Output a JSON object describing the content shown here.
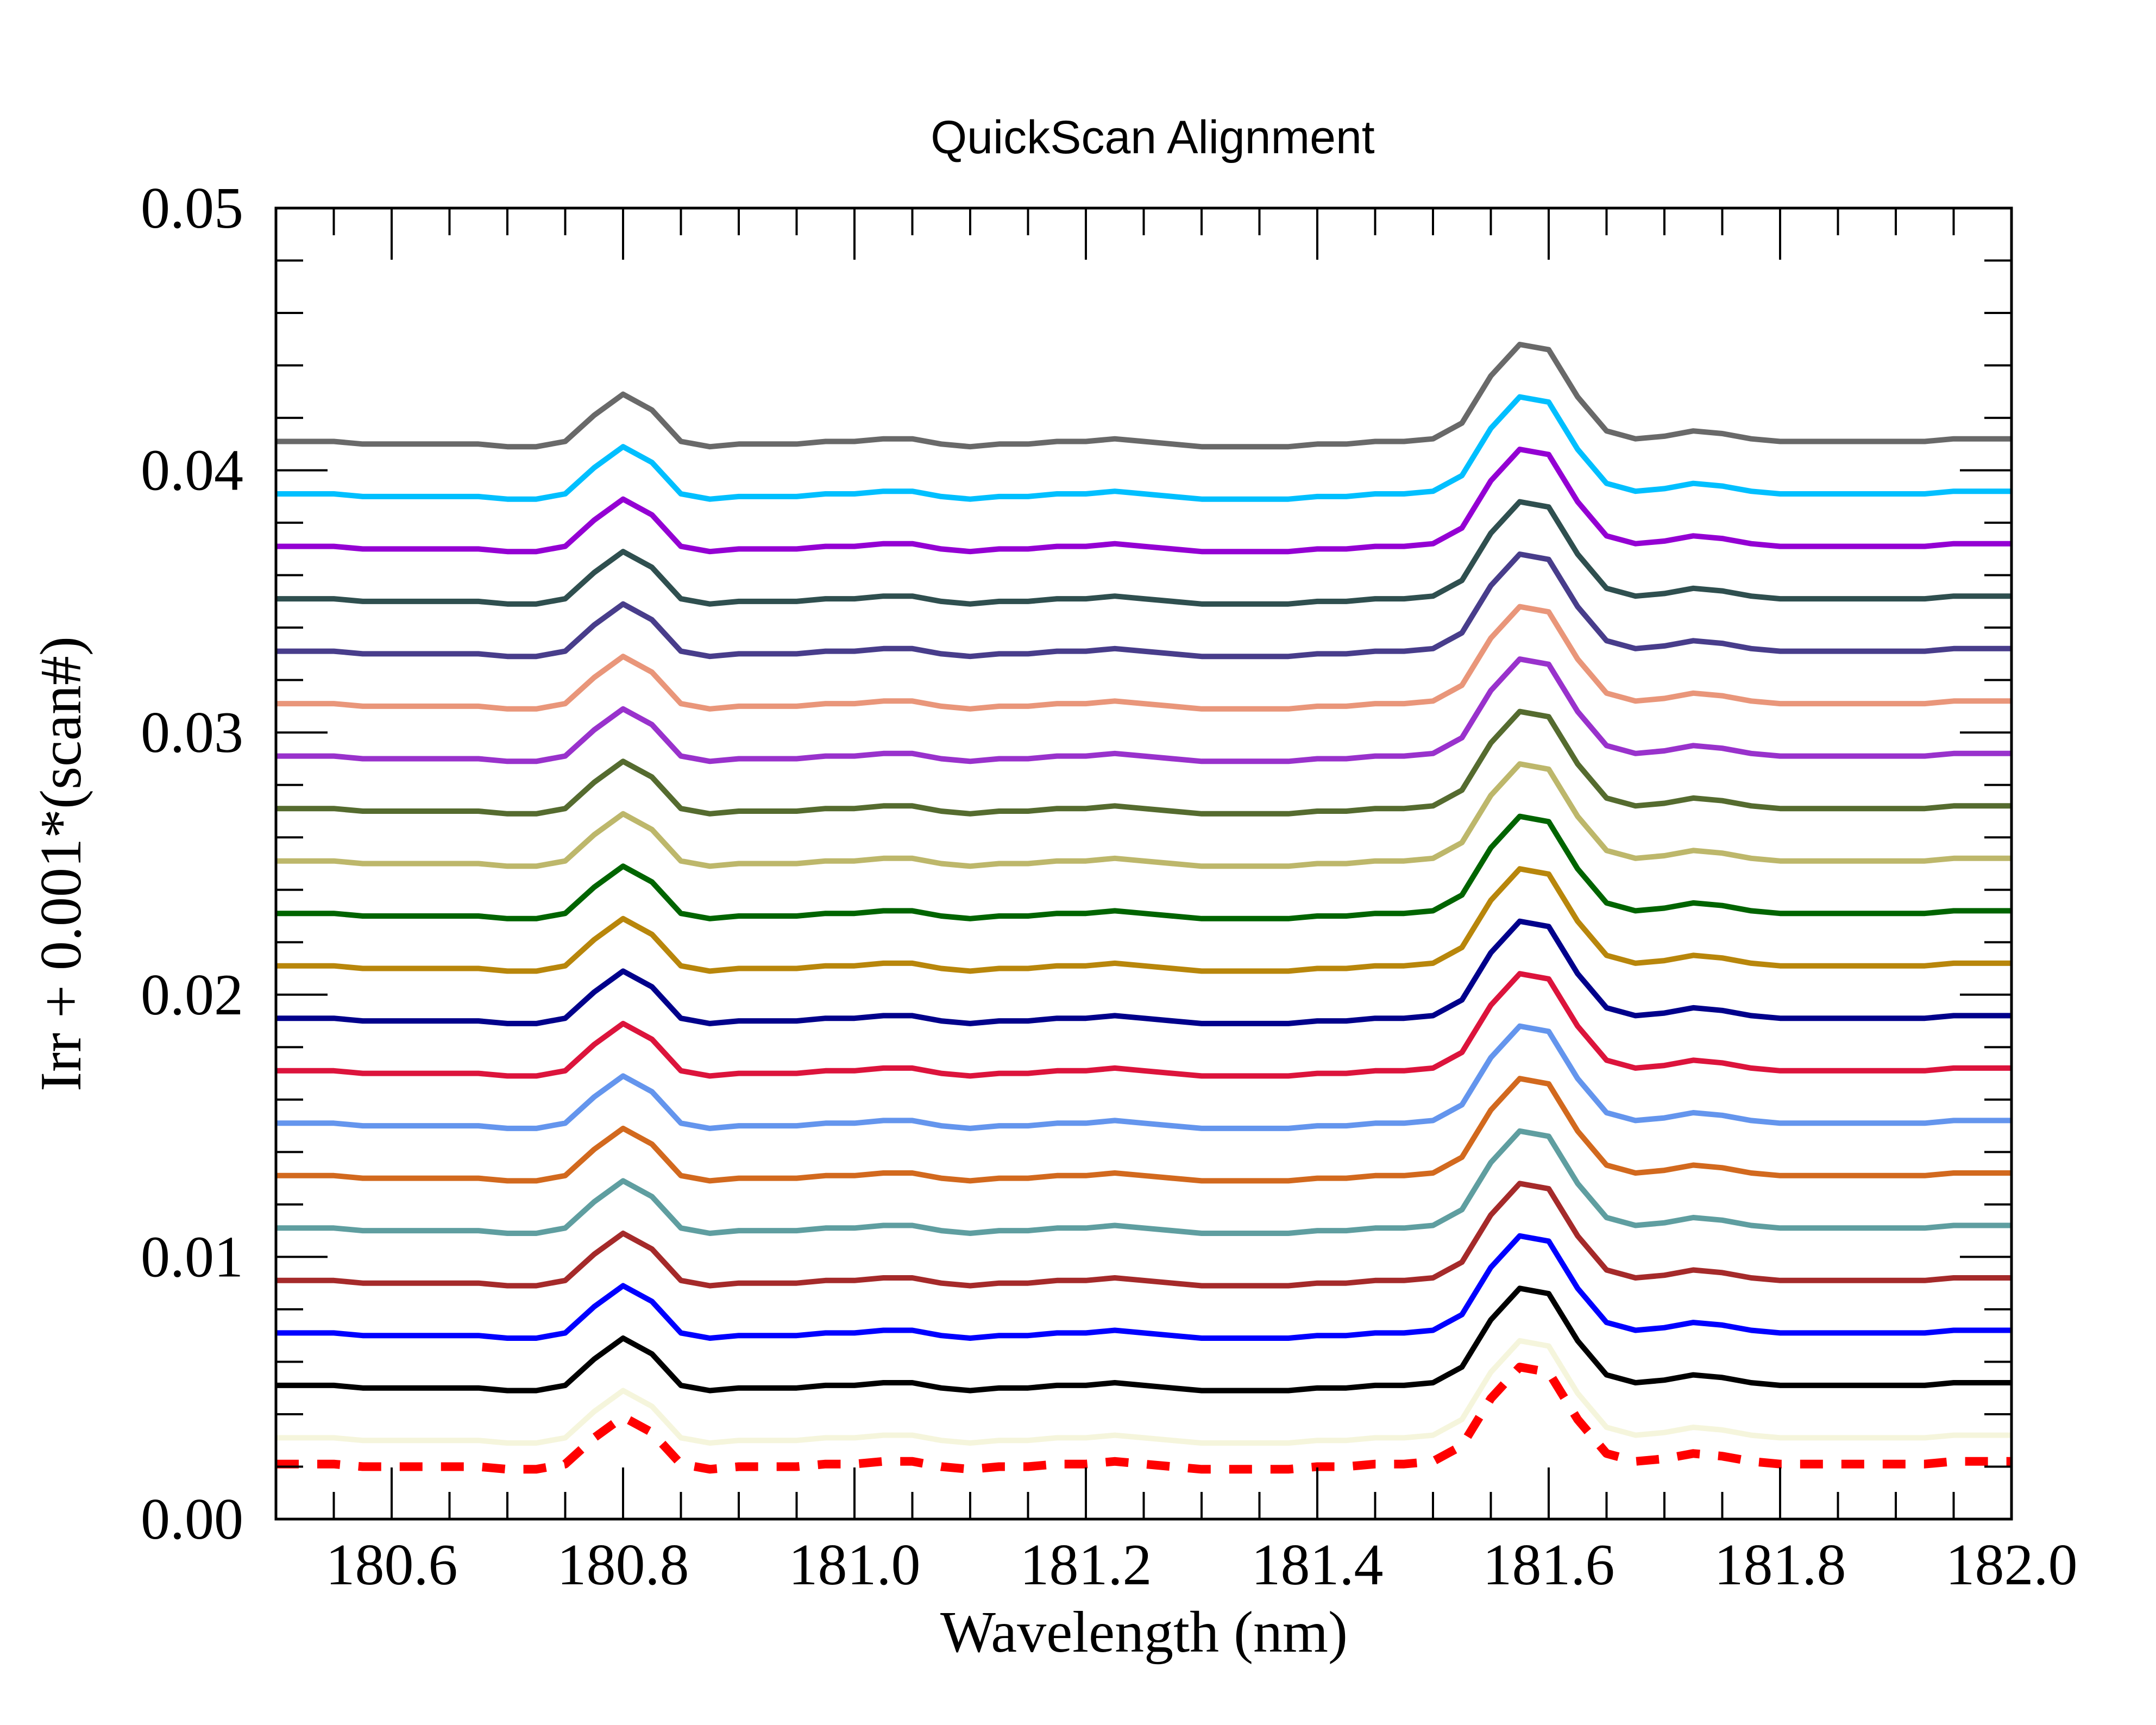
{
  "chart_data": {
    "type": "line",
    "title": "QuickScan Alignment",
    "xlabel": "Wavelength (nm)",
    "ylabel": "Irr + 0.001*(scan#)",
    "xlim": [
      180.5,
      182.0
    ],
    "ylim": [
      0.0,
      0.05
    ],
    "x_ticks": [
      "180.6",
      "180.8",
      "181.0",
      "181.2",
      "181.4",
      "181.6",
      "181.8",
      "182.0"
    ],
    "y_ticks": [
      "0.00",
      "0.01",
      "0.02",
      "0.03",
      "0.04",
      "0.05"
    ],
    "grid": false,
    "legend": "none",
    "x": [
      180.5,
      180.525,
      180.55,
      180.575,
      180.6,
      180.625,
      180.65,
      180.675,
      180.7,
      180.725,
      180.75,
      180.775,
      180.8,
      180.825,
      180.85,
      180.875,
      180.9,
      180.925,
      180.95,
      180.975,
      181.0,
      181.025,
      181.05,
      181.075,
      181.1,
      181.125,
      181.15,
      181.175,
      181.2,
      181.225,
      181.25,
      181.275,
      181.3,
      181.325,
      181.35,
      181.375,
      181.4,
      181.425,
      181.45,
      181.475,
      181.5,
      181.525,
      181.55,
      181.575,
      181.6,
      181.625,
      181.65,
      181.675,
      181.7,
      181.725,
      181.75,
      181.775,
      181.8,
      181.825,
      181.85,
      181.875,
      181.9,
      181.925,
      181.95,
      181.975,
      182.0
    ],
    "base_profile": [
      0.0001,
      0.0001,
      0.0001,
      0.0,
      0.0,
      0.0,
      0.0,
      0.0,
      -0.0001,
      -0.0001,
      0.0001,
      0.0011,
      0.0019,
      0.0013,
      0.0001,
      -0.0001,
      0.0,
      0.0,
      0.0,
      0.0001,
      0.0001,
      0.0002,
      0.0002,
      0.0,
      -0.0001,
      0.0,
      0.0,
      0.0001,
      0.0001,
      0.0002,
      0.0001,
      0.0,
      -0.0001,
      -0.0001,
      -0.0001,
      -0.0001,
      0.0,
      0.0,
      0.0001,
      0.0001,
      0.0002,
      0.0008,
      0.0026,
      0.0038,
      0.0036,
      0.0018,
      0.0005,
      0.0002,
      0.0003,
      0.0005,
      0.0004,
      0.0002,
      0.0001,
      0.0001,
      0.0001,
      0.0001,
      0.0001,
      0.0001,
      0.0002,
      0.0002,
      0.0002
    ],
    "series": [
      {
        "offset": 0.002,
        "color": "#ff0000",
        "dashed": true
      },
      {
        "offset": 0.003,
        "color": "#f5f5dc",
        "dashed": false
      },
      {
        "offset": 0.005,
        "color": "#000000",
        "dashed": false
      },
      {
        "offset": 0.007,
        "color": "#0000ff",
        "dashed": false
      },
      {
        "offset": 0.009,
        "color": "#a52a2a",
        "dashed": false
      },
      {
        "offset": 0.011,
        "color": "#5f9ea0",
        "dashed": false
      },
      {
        "offset": 0.013,
        "color": "#d2691e",
        "dashed": false
      },
      {
        "offset": 0.015,
        "color": "#6495ed",
        "dashed": false
      },
      {
        "offset": 0.017,
        "color": "#dc143c",
        "dashed": false
      },
      {
        "offset": 0.019,
        "color": "#00008b",
        "dashed": false
      },
      {
        "offset": 0.021,
        "color": "#b8860b",
        "dashed": false
      },
      {
        "offset": 0.023,
        "color": "#006400",
        "dashed": false
      },
      {
        "offset": 0.025,
        "color": "#bdb76b",
        "dashed": false
      },
      {
        "offset": 0.027,
        "color": "#556b2f",
        "dashed": false
      },
      {
        "offset": 0.029,
        "color": "#9932cc",
        "dashed": false
      },
      {
        "offset": 0.031,
        "color": "#e9967a",
        "dashed": false
      },
      {
        "offset": 0.033,
        "color": "#483d8b",
        "dashed": false
      },
      {
        "offset": 0.035,
        "color": "#2f4f4f",
        "dashed": false
      },
      {
        "offset": 0.037,
        "color": "#9400d3",
        "dashed": false
      },
      {
        "offset": 0.039,
        "color": "#00bfff",
        "dashed": false
      },
      {
        "offset": 0.041,
        "color": "#696969",
        "dashed": false
      }
    ]
  }
}
